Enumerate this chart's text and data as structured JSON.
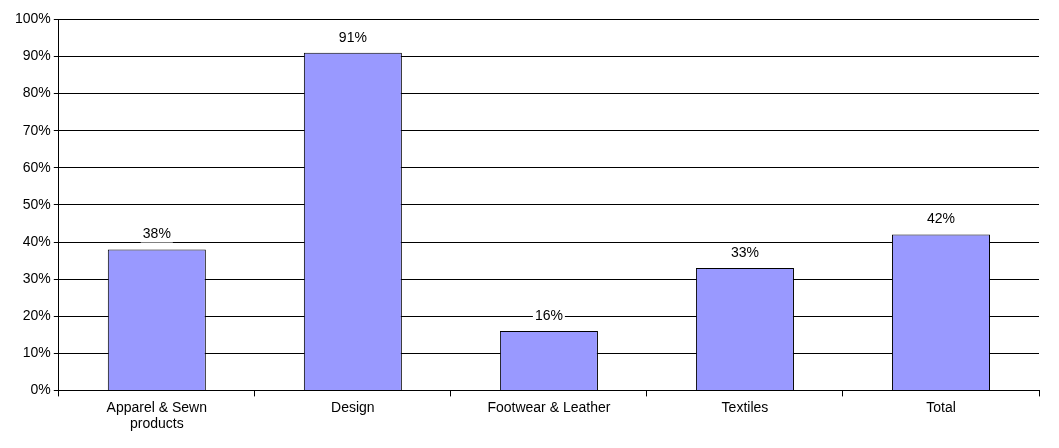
{
  "chart_data": {
    "type": "bar",
    "categories": [
      "Apparel & Sewn products",
      "Design",
      "Footwear & Leather",
      "Textiles",
      "Total"
    ],
    "values": [
      38,
      91,
      16,
      33,
      42
    ],
    "value_labels": [
      "38%",
      "91%",
      "16%",
      "33%",
      "42%"
    ],
    "color": "#9999ff",
    "ylim": [
      0,
      100
    ],
    "yticks": [
      {
        "value": 0,
        "label": "0%"
      },
      {
        "value": 10,
        "label": "10%"
      },
      {
        "value": 20,
        "label": "20%"
      },
      {
        "value": 30,
        "label": "30%"
      },
      {
        "value": 40,
        "label": "40%"
      },
      {
        "value": 50,
        "label": "50%"
      },
      {
        "value": 60,
        "label": "60%"
      },
      {
        "value": 70,
        "label": "70%"
      },
      {
        "value": 80,
        "label": "80%"
      },
      {
        "value": 90,
        "label": "90%"
      },
      {
        "value": 100,
        "label": "100%"
      }
    ],
    "grid": "y",
    "legend": false
  }
}
